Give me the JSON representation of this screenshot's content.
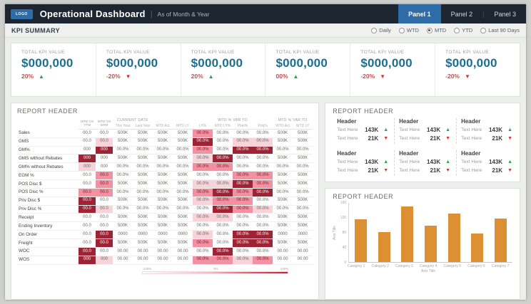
{
  "topbar": {
    "logo": "LOGO",
    "title": "Operational Dashboard",
    "subtitle": "As of Month & Year",
    "panels": [
      {
        "label": "Panel 1",
        "active": true
      },
      {
        "label": "Panel 2",
        "active": false
      },
      {
        "label": "Panel 3",
        "active": false
      }
    ]
  },
  "kpi_summary": {
    "title": "KPI SUMMARY",
    "filters": [
      {
        "label": "Daily",
        "selected": false
      },
      {
        "label": "WTD",
        "selected": false
      },
      {
        "label": "MTD",
        "selected": true
      },
      {
        "label": "YTD",
        "selected": false
      },
      {
        "label": "Last 90 Days",
        "selected": false
      }
    ]
  },
  "kpi_tiles": [
    {
      "label": "TOTAL KPI VALUE",
      "value": "$000,000",
      "change": "20%",
      "direction": "up"
    },
    {
      "label": "TOTAL KPI VALUE",
      "value": "$000,000",
      "change": "-20%",
      "direction": "down"
    },
    {
      "label": "TOTAL KPI VALUE",
      "value": "$000,000",
      "change": "20%",
      "direction": "up"
    },
    {
      "label": "TOTAL KPI VALUE",
      "value": "$000,000",
      "change": "00%",
      "direction": "up"
    },
    {
      "label": "TOTAL KPI VALUE",
      "value": "$000,000",
      "change": "-20%",
      "direction": "down"
    },
    {
      "label": "TOTAL KPI VALUE",
      "value": "$000,000",
      "change": "-20%",
      "direction": "down"
    }
  ],
  "report_table": {
    "title": "REPORT HEADER",
    "stacked_columns": [
      "MTD VS YTD",
      "WTD VS MTD"
    ],
    "col_groups": [
      {
        "label": "CURRENT DATE",
        "span": 2
      },
      {
        "label": "",
        "span": 2
      },
      {
        "label": "WTD % VAR TO",
        "span": 4
      },
      {
        "label": "MTD % VAR TO",
        "span": 2
      }
    ],
    "sub_columns": [
      "This Year",
      "Last Year",
      "MTD Act",
      "MTD LY",
      "LY%",
      "MTD LY%",
      "Plan%",
      "Proj%",
      "WTD Act",
      "WTD LY"
    ],
    "rows": [
      {
        "label": "Sales",
        "values": [
          "00.0",
          "00.0",
          "500K",
          "500K",
          "500K",
          "500K",
          "00.0%",
          "00.0%",
          "00.0%",
          "00.0%",
          "500K",
          "500K"
        ],
        "heat": [
          0,
          0,
          0,
          0,
          0,
          0,
          2,
          0,
          0,
          0,
          0,
          0
        ]
      },
      {
        "label": "GMS",
        "values": [
          "00.0",
          "00.0",
          "500K",
          "500K",
          "500K",
          "500K",
          "00.0%",
          "00.0%",
          "00.0%",
          "00.0%",
          "500K",
          "500K"
        ],
        "heat": [
          0,
          1,
          0,
          0,
          0,
          0,
          3,
          0,
          1,
          1,
          0,
          0
        ]
      },
      {
        "label": "GM%",
        "values": [
          "000",
          "000",
          "00.0%",
          "00.0%",
          "00.0%",
          "00.0%",
          "00.0%",
          "00.0%",
          "00.0%",
          "00.0%",
          "00.0%",
          "00.0%"
        ],
        "heat": [
          0,
          3,
          0,
          0,
          0,
          0,
          2,
          0,
          3,
          3,
          0,
          0
        ]
      },
      {
        "label": "GMS without Rebates",
        "values": [
          "000",
          "000",
          "500K",
          "500K",
          "500K",
          "500K",
          "00.0%",
          "00.0%",
          "00.0%",
          "00.0%",
          "500K",
          "500K"
        ],
        "heat": [
          3,
          0,
          0,
          0,
          0,
          0,
          1,
          3,
          0,
          0,
          0,
          0
        ]
      },
      {
        "label": "GM% without Rebates",
        "values": [
          "000",
          "000",
          "00.0%",
          "00.0%",
          "00.0%",
          "00.0%",
          "00.0%",
          "00.0%",
          "00.0%",
          "00.0%",
          "00.0%",
          "00.0%"
        ],
        "heat": [
          1,
          0,
          0,
          0,
          0,
          0,
          2,
          2,
          0,
          0,
          0,
          0
        ]
      },
      {
        "label": "EGM %",
        "values": [
          "00.0",
          "00.0",
          "00.0%",
          "500K",
          "500K",
          "500K",
          "00.0%",
          "00.0%",
          "00.0%",
          "00.0%",
          "500K",
          "500K"
        ],
        "heat": [
          0,
          2,
          0,
          0,
          0,
          0,
          0,
          0,
          2,
          2,
          0,
          0
        ]
      },
      {
        "label": "POS Disc $",
        "values": [
          "00.0",
          "00.0",
          "500K",
          "500K",
          "500K",
          "500K",
          "00.0%",
          "00.0%",
          "00.0%",
          "00.0%",
          "500K",
          "500K"
        ],
        "heat": [
          0,
          2,
          0,
          0,
          0,
          0,
          1,
          1,
          3,
          2,
          0,
          0
        ]
      },
      {
        "label": "POS Disc %",
        "values": [
          "00.0",
          "00.0",
          "00.0%",
          "00.0%",
          "00.0%",
          "00.0%",
          "00.0%",
          "00.0%",
          "00.0%",
          "00.0%",
          "00.0%",
          "00.0%"
        ],
        "heat": [
          2,
          2,
          0,
          0,
          0,
          0,
          2,
          3,
          2,
          3,
          0,
          0
        ]
      },
      {
        "label": "Priv Disc $",
        "values": [
          "00.0",
          "00.0",
          "500K",
          "500K",
          "500K",
          "500K",
          "00.0%",
          "00.0%",
          "00.0%",
          "00.0%",
          "500K",
          "500K"
        ],
        "heat": [
          3,
          0,
          0,
          0,
          0,
          0,
          1,
          2,
          2,
          0,
          0,
          0
        ]
      },
      {
        "label": "Priv Disc %",
        "values": [
          "00.0",
          "00.0",
          "00.0%",
          "00.0%",
          "00.0%",
          "00.0%",
          "00.0%",
          "00.0%",
          "00.0%",
          "00.0%",
          "00.0%",
          "00.0%"
        ],
        "heat": [
          3,
          1,
          0,
          0,
          0,
          0,
          0,
          3,
          2,
          1,
          0,
          0
        ]
      },
      {
        "label": "Receipt",
        "values": [
          "00.0",
          "00.0",
          "500K",
          "500K",
          "500K",
          "500K",
          "00.0%",
          "00.0%",
          "00.0%",
          "00.0%",
          "500K",
          "500K"
        ],
        "heat": [
          0,
          0,
          0,
          0,
          0,
          0,
          1,
          1,
          0,
          0,
          0,
          0
        ]
      },
      {
        "label": "Ending Inventory",
        "values": [
          "00.0",
          "00.0",
          "500K",
          "500K",
          "500K",
          "500K",
          "00.0%",
          "00.0%",
          "00.0%",
          "00.0%",
          "500K",
          "500K"
        ],
        "heat": [
          0,
          0,
          0,
          0,
          0,
          0,
          0,
          0,
          0,
          0,
          0,
          0
        ]
      },
      {
        "label": "On Order",
        "values": [
          "00.0",
          "00.0",
          "0000",
          "0000",
          "0000",
          "0000",
          "00.0%",
          "00.0%",
          "00.0%",
          "00.0%",
          "0000",
          "0000"
        ],
        "heat": [
          0,
          3,
          0,
          0,
          0,
          0,
          1,
          0,
          3,
          3,
          0,
          0
        ]
      },
      {
        "label": "Freight",
        "values": [
          "00.0",
          "00.0",
          "500K",
          "500K",
          "500K",
          "500K",
          "00.0%",
          "00.0%",
          "00.0%",
          "00.0%",
          "500K",
          "500K"
        ],
        "heat": [
          0,
          3,
          0,
          0,
          0,
          0,
          2,
          0,
          3,
          3,
          0,
          0
        ]
      },
      {
        "label": "WOC",
        "values": [
          "00.0",
          "00.0",
          "00.00",
          "00.00",
          "00.00",
          "00.00",
          "00.0%",
          "00.0%",
          "00.0%",
          "00.0%",
          "00.00",
          "00.00"
        ],
        "heat": [
          3,
          0,
          0,
          0,
          0,
          0,
          0,
          3,
          0,
          0,
          0,
          0
        ]
      },
      {
        "label": "WOS",
        "values": [
          "000",
          "000",
          "00.00",
          "00.00",
          "00.00",
          "00.00",
          "00.0%",
          "00.0%",
          "00.0%",
          "00.0%",
          "00.00",
          "00.00"
        ],
        "heat": [
          3,
          1,
          0,
          0,
          0,
          0,
          2,
          2,
          1,
          2,
          0,
          0
        ]
      }
    ],
    "legend": {
      "min": "-100%",
      "mid": "0%",
      "max": "100%"
    }
  },
  "kpi_grid": {
    "title": "REPORT HEADER",
    "blocks": [
      {
        "header": "Header",
        "metrics": [
          {
            "label": "Text Here",
            "value": "143K",
            "direction": "up"
          },
          {
            "label": "Text Here",
            "value": "21K",
            "direction": "down"
          }
        ]
      },
      {
        "header": "Header",
        "metrics": [
          {
            "label": "Text Here",
            "value": "143K",
            "direction": "up"
          },
          {
            "label": "Text Here",
            "value": "21K",
            "direction": "down"
          }
        ]
      },
      {
        "header": "Header",
        "metrics": [
          {
            "label": "Text Here",
            "value": "143K",
            "direction": "up"
          },
          {
            "label": "Text Here",
            "value": "21K",
            "direction": "down"
          }
        ]
      },
      {
        "header": "Header",
        "metrics": [
          {
            "label": "Text Here",
            "value": "143K",
            "direction": "up"
          },
          {
            "label": "Text Here",
            "value": "21K",
            "direction": "down"
          }
        ]
      },
      {
        "header": "Header",
        "metrics": [
          {
            "label": "Text Here",
            "value": "143K",
            "direction": "up"
          },
          {
            "label": "Text Here",
            "value": "21K",
            "direction": "down"
          }
        ]
      },
      {
        "header": "Header",
        "metrics": [
          {
            "label": "Text Here",
            "value": "143K",
            "direction": "up"
          },
          {
            "label": "Text Here",
            "value": "21K",
            "direction": "down"
          }
        ]
      }
    ]
  },
  "chart_data": {
    "type": "bar",
    "title": "REPORT HEADER",
    "categories": [
      "Category 1",
      "Category 2",
      "Category 3",
      "Category 4",
      "Category 5",
      "Category 6",
      "Category 7"
    ],
    "values": [
      115,
      80,
      148,
      97,
      130,
      77,
      116
    ],
    "xlabel": "Axis Title",
    "ylabel": "Axis Title",
    "ylim": [
      0,
      160
    ],
    "yticks": [
      0,
      40,
      80,
      120,
      160
    ],
    "grid": false,
    "bar_color": "#dd8f33"
  },
  "colors": {
    "topbar_bg": "#1c2530",
    "accent_blue": "#2d6ca6",
    "kpi_value_teal": "#1b6f8e",
    "pct_text_red": "#c0504d",
    "up_green": "#27a348",
    "down_red": "#e03131",
    "heat_light": "#f8d3da",
    "heat_mid": "#f191a1",
    "heat_dark": "#9e2335",
    "bar_orange": "#dd8f33"
  }
}
